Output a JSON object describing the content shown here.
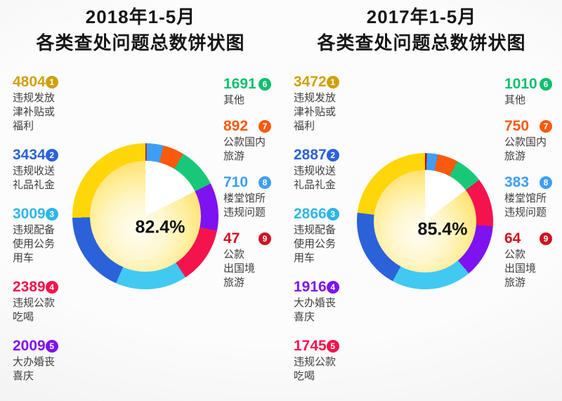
{
  "chart_data": [
    {
      "type": "pie",
      "title": "2018年1-5月 各类查处问题总数饼状图",
      "title_lines": [
        "2018年1-5月",
        "各类查处问题总数饼状图"
      ],
      "center_label": "82.4%",
      "legend_left_count": 5,
      "inner_highlight_count": 5,
      "inner_colors": {
        "highlight": "#FFD74E",
        "rest": "#FFFFFF"
      },
      "layout": {
        "ring_order": "ranks drawn counterclockwise from 12 o'clock (rank 9 first clockwise)",
        "legend_position": "left and right of pie"
      },
      "items": [
        {
          "rank": 1,
          "value": 4804,
          "label": "违规发放津补贴或福利",
          "label_lines": [
            "违规发放",
            "津补贴或",
            "福利"
          ],
          "color": "#FFD60A",
          "text_color": "#CEA10E"
        },
        {
          "rank": 2,
          "value": 3434,
          "label": "违规收送礼品礼金",
          "label_lines": [
            "违规收送",
            "礼品礼金"
          ],
          "color": "#2B62D9",
          "text_color": "#2B62D9"
        },
        {
          "rank": 3,
          "value": 3009,
          "label": "违规配备使用公务用车",
          "label_lines": [
            "违规配备",
            "使用公务",
            "用车"
          ],
          "color": "#41C9F2",
          "text_color": "#2FB6E9"
        },
        {
          "rank": 4,
          "value": 2389,
          "label": "违规公款吃喝",
          "label_lines": [
            "违规公款",
            "吃喝"
          ],
          "color": "#F5134D",
          "text_color": "#F5134D"
        },
        {
          "rank": 5,
          "value": 2009,
          "label": "大办婚丧喜庆",
          "label_lines": [
            "大办婚丧",
            "喜庆"
          ],
          "color": "#7F12F0",
          "text_color": "#7F12F0"
        },
        {
          "rank": 6,
          "value": 1691,
          "label": "其他",
          "label_lines": [
            "其他"
          ],
          "color": "#18C878",
          "text_color": "#10BE6D"
        },
        {
          "rank": 7,
          "value": 892,
          "label": "公款国内旅游",
          "label_lines": [
            "公款国内",
            "旅游"
          ],
          "color": "#F85A10",
          "text_color": "#F85A10"
        },
        {
          "rank": 8,
          "value": 710,
          "label": "楼堂馆所违规问题",
          "label_lines": [
            "楼堂馆所",
            "违规问题"
          ],
          "color": "#3E9EF3",
          "text_color": "#3E9EF3"
        },
        {
          "rank": 9,
          "value": 47,
          "label": "公款出国境旅游",
          "label_lines": [
            "公款",
            "出国境",
            "旅游"
          ],
          "color": "#C00A1E",
          "text_color": "#CC1423"
        }
      ]
    },
    {
      "type": "pie",
      "title": "2017年1-5月 各类查处问题总数饼状图",
      "title_lines": [
        "2017年1-5月",
        "各类查处问题总数饼状图"
      ],
      "center_label": "85.4%",
      "legend_left_count": 5,
      "inner_highlight_count": 5,
      "inner_colors": {
        "highlight": "#FFD74E",
        "rest": "#FFFFFF"
      },
      "layout": {
        "ring_order": "ranks drawn counterclockwise from 12 o'clock (rank 9 first clockwise)",
        "legend_position": "left and right of pie"
      },
      "items": [
        {
          "rank": 1,
          "value": 3472,
          "label": "违规发放津补贴或福利",
          "label_lines": [
            "违规发放",
            "津补贴或",
            "福利"
          ],
          "color": "#FFD60A",
          "text_color": "#CEA10E"
        },
        {
          "rank": 2,
          "value": 2887,
          "label": "违规收送礼品礼金",
          "label_lines": [
            "违规收送",
            "礼品礼金"
          ],
          "color": "#2B62D9",
          "text_color": "#2B62D9"
        },
        {
          "rank": 3,
          "value": 2866,
          "label": "违规配备使用公务用车",
          "label_lines": [
            "违规配备",
            "使用公务",
            "用车"
          ],
          "color": "#41C9F2",
          "text_color": "#2FB6E9"
        },
        {
          "rank": 4,
          "value": 1916,
          "label": "大办婚丧喜庆",
          "label_lines": [
            "大办婚丧",
            "喜庆"
          ],
          "color": "#7F12F0",
          "text_color": "#7F12F0"
        },
        {
          "rank": 5,
          "value": 1745,
          "label": "违规公款吃喝",
          "label_lines": [
            "违规公款",
            "吃喝"
          ],
          "color": "#F5134D",
          "text_color": "#F5134D"
        },
        {
          "rank": 6,
          "value": 1010,
          "label": "其他",
          "label_lines": [
            "其他"
          ],
          "color": "#18C878",
          "text_color": "#10BE6D"
        },
        {
          "rank": 7,
          "value": 750,
          "label": "公款国内旅游",
          "label_lines": [
            "公款国内",
            "旅游"
          ],
          "color": "#F85A10",
          "text_color": "#F85A10"
        },
        {
          "rank": 8,
          "value": 383,
          "label": "楼堂馆所违规问题",
          "label_lines": [
            "楼堂馆所",
            "违规问题"
          ],
          "color": "#3E9EF3",
          "text_color": "#3E9EF3"
        },
        {
          "rank": 9,
          "value": 64,
          "label": "公款出国境旅游",
          "label_lines": [
            "公款",
            "出国境",
            "旅游"
          ],
          "color": "#C00A1E",
          "text_color": "#CC1423"
        }
      ]
    }
  ]
}
